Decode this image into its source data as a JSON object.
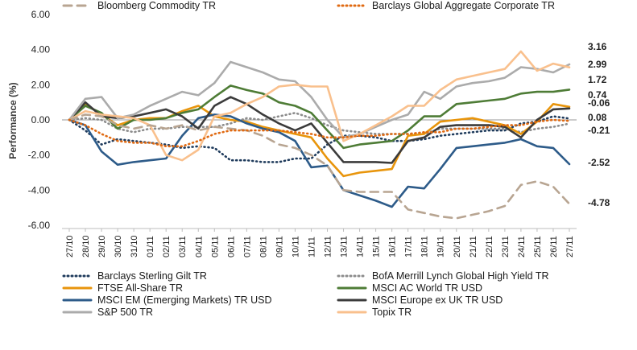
{
  "chart_data": {
    "type": "line",
    "title": "",
    "xlabel": "",
    "ylabel": "Performance (%)",
    "ylim": [
      -6,
      6
    ],
    "yticks": [
      "6.00",
      "4.00",
      "2.00",
      "0.00",
      "-2.00",
      "-4.00",
      "-6.00"
    ],
    "categories": [
      "27/10",
      "28/10",
      "29/10",
      "30/10",
      "31/10",
      "01/11",
      "02/11",
      "03/11",
      "04/11",
      "05/11",
      "06/11",
      "07/11",
      "08/11",
      "09/11",
      "10/11",
      "11/11",
      "12/11",
      "13/11",
      "14/11",
      "15/11",
      "16/11",
      "17/11",
      "18/11",
      "19/11",
      "20/11",
      "21/11",
      "22/11",
      "23/11",
      "24/11",
      "25/11",
      "26/11",
      "27/11"
    ],
    "series": [
      {
        "name": "Barclays Sterling Gilt TR",
        "color": "#1f3b5c",
        "dash": "dot",
        "values": [
          0,
          -0.6,
          -1.4,
          -1.1,
          -1.2,
          -1.3,
          -1.4,
          -1.6,
          -1.5,
          -1.6,
          -2.3,
          -2.3,
          -2.4,
          -2.4,
          -2.2,
          -2.2,
          -1.4,
          -0.9,
          -0.9,
          -1.0,
          -1.2,
          -1.2,
          -1.1,
          -0.9,
          -0.8,
          -0.7,
          -0.6,
          -0.6,
          -0.2,
          -0.1,
          0.2,
          0.08
        ]
      },
      {
        "name": "BofA Merrill Lynch Global High Yield TR",
        "color": "#8c8c8c",
        "dash": "dot",
        "values": [
          0,
          0.1,
          0.0,
          -0.5,
          -0.7,
          -0.5,
          -0.5,
          -0.4,
          -0.4,
          -0.4,
          -0.2,
          0.1,
          0.0,
          0.2,
          0.4,
          0.1,
          -0.3,
          -0.6,
          -0.7,
          -0.8,
          -0.8,
          -0.8,
          -0.8,
          -0.5,
          -0.5,
          -0.5,
          -0.5,
          -0.5,
          -0.7,
          -0.5,
          -0.4,
          -0.21
        ]
      },
      {
        "name": "FTSE All-Share TR",
        "color": "#e8950c",
        "dash": "solid",
        "values": [
          0,
          0.9,
          0.3,
          -0.3,
          0.0,
          0.1,
          0.1,
          0.5,
          0.8,
          0.2,
          0.0,
          -0.1,
          -0.4,
          -0.6,
          -0.8,
          -1.0,
          -2.2,
          -3.2,
          -3.0,
          -2.9,
          -2.8,
          -0.9,
          -0.8,
          -0.1,
          0.0,
          0.1,
          -0.1,
          -0.3,
          -0.8,
          -0.1,
          0.9,
          0.74
        ]
      },
      {
        "name": "MSCI AC World TR USD",
        "color": "#4e7c36",
        "dash": "solid",
        "values": [
          0,
          0.8,
          0.4,
          -0.5,
          0.0,
          0.0,
          0.1,
          0.4,
          0.6,
          1.3,
          1.95,
          1.7,
          1.5,
          1.0,
          0.8,
          0.4,
          -0.6,
          -1.6,
          -1.4,
          -1.3,
          -1.2,
          -0.6,
          0.2,
          0.2,
          0.9,
          1.0,
          1.1,
          1.2,
          1.5,
          1.6,
          1.6,
          1.72
        ]
      },
      {
        "name": "MSCI EM (Emerging Markets) TR USD",
        "color": "#2d5b89",
        "dash": "solid",
        "values": [
          0,
          -0.3,
          -1.8,
          -2.55,
          -2.4,
          -2.3,
          -2.2,
          -0.9,
          0.1,
          0.3,
          0.2,
          -0.2,
          -0.5,
          -0.7,
          -1.2,
          -2.7,
          -2.6,
          -4.0,
          -4.3,
          -4.6,
          -4.95,
          -3.8,
          -3.9,
          -2.8,
          -1.6,
          -1.5,
          -1.4,
          -1.3,
          -1.1,
          -1.5,
          -1.6,
          -2.52
        ]
      },
      {
        "name": "MSCI Europe ex UK TR USD",
        "color": "#3b3b3b",
        "dash": "solid",
        "values": [
          0,
          1.0,
          0.2,
          0.1,
          0.2,
          0.4,
          0.6,
          0.2,
          -0.5,
          0.8,
          1.3,
          0.9,
          0.3,
          -0.2,
          -0.6,
          -0.2,
          -1.3,
          -2.4,
          -2.4,
          -2.4,
          -2.45,
          -1.2,
          -1.0,
          -0.4,
          -0.3,
          -0.3,
          -0.3,
          -0.4,
          -1.0,
          0.0,
          0.6,
          0.65
        ]
      },
      {
        "name": "S&P 500 TR",
        "color": "#ababab",
        "dash": "solid",
        "values": [
          0,
          1.2,
          1.3,
          0.1,
          0.3,
          0.8,
          1.2,
          1.6,
          1.4,
          2.1,
          3.3,
          3.0,
          2.7,
          2.3,
          2.2,
          1.3,
          0.0,
          -1.0,
          -0.8,
          -0.4,
          0.0,
          0.3,
          1.6,
          1.2,
          1.9,
          2.1,
          2.2,
          2.4,
          3.0,
          2.9,
          2.7,
          3.16
        ]
      },
      {
        "name": "Topix TR",
        "color": "#f9c08d",
        "dash": "solid",
        "values": [
          0,
          0.5,
          0.3,
          0.2,
          0.1,
          -0.3,
          -2.0,
          -2.3,
          -1.7,
          0.2,
          0.4,
          0.9,
          1.3,
          1.9,
          2.0,
          1.9,
          1.9,
          -1.2,
          -0.8,
          -0.3,
          0.2,
          0.8,
          0.8,
          1.7,
          2.3,
          2.5,
          2.7,
          2.9,
          3.9,
          2.8,
          3.2,
          2.99
        ]
      },
      {
        "name": "Bloomberg Commodity TR",
        "color": "#b8a592",
        "dash": "dash",
        "values": [
          0,
          0.3,
          0.2,
          -0.3,
          -0.5,
          -0.3,
          -0.5,
          -0.3,
          -0.6,
          -0.4,
          -0.5,
          -0.6,
          -0.9,
          -1.4,
          -1.6,
          -2.0,
          -2.6,
          -4.0,
          -4.1,
          -4.1,
          -4.1,
          -5.1,
          -5.3,
          -5.5,
          -5.6,
          -5.4,
          -5.2,
          -4.9,
          -3.7,
          -3.5,
          -3.8,
          -4.78
        ]
      },
      {
        "name": "Barclays Global Aggregate Corporate TR",
        "color": "#e06a12",
        "dash": "dot",
        "values": [
          0,
          -0.3,
          -0.8,
          -1.2,
          -1.3,
          -1.3,
          -1.5,
          -1.5,
          -1.2,
          -0.8,
          -0.6,
          -0.6,
          -0.6,
          -0.6,
          -0.7,
          -0.8,
          -1.0,
          -1.0,
          -0.9,
          -0.9,
          -0.8,
          -0.8,
          -0.7,
          -0.7,
          -0.5,
          -0.5,
          -0.4,
          -0.3,
          -0.3,
          -0.1,
          0.0,
          -0.06
        ]
      }
    ],
    "end_labels": [
      "3.16",
      "2.99",
      "1.72",
      "0.74",
      "-0.06",
      "0.08",
      "-0.21",
      "-2.52",
      "-4.78"
    ],
    "legend_position": "bottom"
  }
}
